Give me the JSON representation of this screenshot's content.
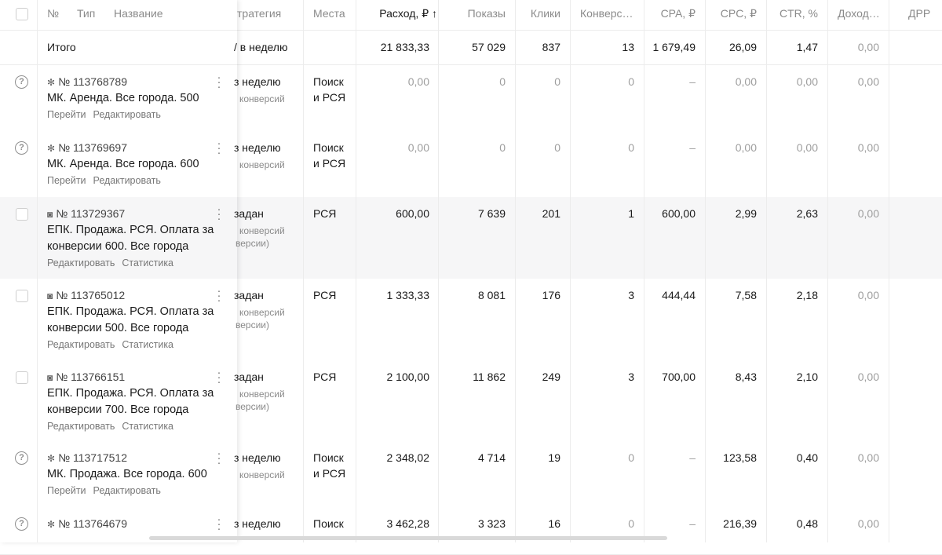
{
  "header": {
    "num": "№",
    "type": "Тип",
    "name": "Название",
    "strategy": "тратегия",
    "places": "Места",
    "spend": "Расход, ₽ ↑",
    "impressions": "Показы",
    "clicks": "Клики",
    "conversions": "Конверс…",
    "cpa": "CPA, ₽",
    "cpc": "CPC, ₽",
    "ctr": "CTR, %",
    "income": "Доход…",
    "drr": "ДРР"
  },
  "total": {
    "label": "Итого",
    "strategy": "/ в неделю",
    "spend": "21 833,33",
    "impressions": "57 029",
    "clicks": "837",
    "conversions": "13",
    "cpa": "1 679,49",
    "cpc": "26,09",
    "ctr": "1,47",
    "income": "0,00"
  },
  "rows": [
    {
      "status_icon": "question-circle-icon",
      "type_icon": "sparkle-icon",
      "id": "№ 113768789",
      "name": "МК. Аренда. Все города. 500",
      "link1": "Перейти",
      "link2": "Редактировать",
      "strategy": "з неделю",
      "strategy_sub": "конверсий",
      "strategy_sub2": "",
      "places": "Поиск",
      "places2": "и РСЯ",
      "spend": "0,00",
      "impressions": "0",
      "clicks": "0",
      "conversions": "0",
      "cpa": "–",
      "cpc": "0,00",
      "ctr": "0,00",
      "income": "0,00"
    },
    {
      "status_icon": "question-circle-icon",
      "type_icon": "sparkle-icon",
      "id": "№ 113769697",
      "name": "МК. Аренда. Все города. 600",
      "link1": "Перейти",
      "link2": "Редактировать",
      "strategy": "з неделю",
      "strategy_sub": "конверсий",
      "strategy_sub2": "",
      "places": "Поиск",
      "places2": "и РСЯ",
      "spend": "0,00",
      "impressions": "0",
      "clicks": "0",
      "conversions": "0",
      "cpa": "–",
      "cpc": "0,00",
      "ctr": "0,00",
      "income": "0,00"
    },
    {
      "status_icon": "checkbox",
      "type_icon": "target-icon",
      "id": "№ 113729367",
      "name": "ЕПК. Продажа. РСЯ. Оплата за конверсии 600. Все города",
      "link1": "Редактировать",
      "link2": "Статистика",
      "strategy": "задан",
      "strategy_sub": "конверсий",
      "strategy_sub2": "версии)",
      "places": "РСЯ",
      "places2": "",
      "spend": "600,00",
      "impressions": "7 639",
      "clicks": "201",
      "conversions": "1",
      "cpa": "600,00",
      "cpc": "2,99",
      "ctr": "2,63",
      "income": "0,00"
    },
    {
      "status_icon": "checkbox",
      "type_icon": "target-icon",
      "id": "№ 113765012",
      "name": "ЕПК. Продажа. РСЯ. Оплата за конверсии 500. Все города",
      "link1": "Редактировать",
      "link2": "Статистика",
      "strategy": "задан",
      "strategy_sub": "конверсий",
      "strategy_sub2": "версии)",
      "places": "РСЯ",
      "places2": "",
      "spend": "1 333,33",
      "impressions": "8 081",
      "clicks": "176",
      "conversions": "3",
      "cpa": "444,44",
      "cpc": "7,58",
      "ctr": "2,18",
      "income": "0,00"
    },
    {
      "status_icon": "checkbox",
      "type_icon": "target-icon",
      "id": "№ 113766151",
      "name": "ЕПК. Продажа. РСЯ. Оплата за конверсии 700. Все города",
      "link1": "Редактировать",
      "link2": "Статистика",
      "strategy": "задан",
      "strategy_sub": "конверсий",
      "strategy_sub2": "версии)",
      "places": "РСЯ",
      "places2": "",
      "spend": "2 100,00",
      "impressions": "11 862",
      "clicks": "249",
      "conversions": "3",
      "cpa": "700,00",
      "cpc": "8,43",
      "ctr": "2,10",
      "income": "0,00"
    },
    {
      "status_icon": "question-circle-icon",
      "type_icon": "sparkle-icon",
      "id": "№ 113717512",
      "name": "МК. Продажа. Все города. 600",
      "link1": "Перейти",
      "link2": "Редактировать",
      "strategy": "з неделю",
      "strategy_sub": "конверсий",
      "strategy_sub2": "",
      "places": "Поиск",
      "places2": "и РСЯ",
      "spend": "2 348,02",
      "impressions": "4 714",
      "clicks": "19",
      "conversions": "0",
      "cpa": "–",
      "cpc": "123,58",
      "ctr": "0,40",
      "income": "0,00"
    },
    {
      "status_icon": "question-circle-icon",
      "type_icon": "sparkle-icon",
      "id": "№ 113764679",
      "name": "",
      "link1": "",
      "link2": "",
      "strategy": "з неделю",
      "strategy_sub": "",
      "strategy_sub2": "",
      "places": "Поиск",
      "places2": "",
      "spend": "3 462,28",
      "impressions": "3 323",
      "clicks": "16",
      "conversions": "0",
      "cpa": "–",
      "cpc": "216,39",
      "ctr": "0,48",
      "income": "0,00"
    }
  ]
}
